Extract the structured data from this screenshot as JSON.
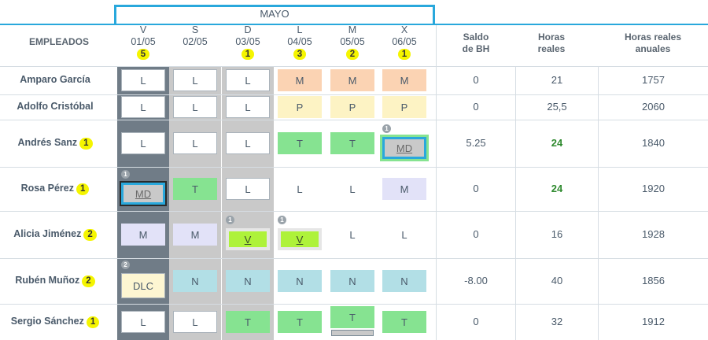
{
  "month": "MAYO",
  "headers": {
    "employees": "EMPLEADOS",
    "balance": [
      "Saldo",
      "de BH"
    ],
    "real_hours": [
      "Horas",
      "reales"
    ],
    "annual_hours": [
      "Horas reales",
      "anuales"
    ]
  },
  "days": [
    {
      "letter": "V",
      "date": "01/05",
      "count": "5"
    },
    {
      "letter": "S",
      "date": "02/05",
      "count": ""
    },
    {
      "letter": "D",
      "date": "03/05",
      "count": "1"
    },
    {
      "letter": "L",
      "date": "04/05",
      "count": "3"
    },
    {
      "letter": "M",
      "date": "05/05",
      "count": "2"
    },
    {
      "letter": "X",
      "date": "06/05",
      "count": "1"
    }
  ],
  "employees": [
    {
      "name": "Amparo García",
      "count": "",
      "shifts": [
        {
          "code": "L",
          "style": "L-box"
        },
        {
          "code": "L",
          "style": "L-box"
        },
        {
          "code": "L",
          "style": "L-box"
        },
        {
          "code": "M",
          "style": "M-orange"
        },
        {
          "code": "M",
          "style": "M-orange"
        },
        {
          "code": "M",
          "style": "M-orange"
        }
      ],
      "balance": "0",
      "hours": "21",
      "annual": "1757",
      "hours_green": false
    },
    {
      "name": "Adolfo Cristóbal",
      "count": "",
      "shifts": [
        {
          "code": "L",
          "style": "L-box"
        },
        {
          "code": "L",
          "style": "L-box"
        },
        {
          "code": "L",
          "style": "L-box"
        },
        {
          "code": "P",
          "style": "P-yellow"
        },
        {
          "code": "P",
          "style": "P-yellow"
        },
        {
          "code": "P",
          "style": "P-yellow"
        }
      ],
      "balance": "0",
      "hours": "25,5",
      "annual": "2060",
      "hours_green": false
    },
    {
      "name": "Andrés Sanz",
      "count": "1",
      "shifts": [
        {
          "code": "L",
          "style": "L-box"
        },
        {
          "code": "L",
          "style": "L-box"
        },
        {
          "code": "L",
          "style": "L-box"
        },
        {
          "code": "T",
          "style": "T-green"
        },
        {
          "code": "T",
          "style": "T-green"
        },
        {
          "code": "MD",
          "style": "MD-gray",
          "badge": "1"
        }
      ],
      "balance": "5.25",
      "hours": "24",
      "annual": "1840",
      "hours_green": true
    },
    {
      "name": "Rosa Pérez",
      "count": "1",
      "shifts": [
        {
          "code": "MD",
          "style": "MD-sel",
          "badge": "1"
        },
        {
          "code": "T",
          "style": "T-green"
        },
        {
          "code": "L",
          "style": "L-box"
        },
        {
          "code": "L",
          "style": "plain"
        },
        {
          "code": "L",
          "style": "plain"
        },
        {
          "code": "M",
          "style": "M-lav"
        }
      ],
      "balance": "0",
      "hours": "24",
      "annual": "1920",
      "hours_green": true
    },
    {
      "name": "Alicia Jiménez",
      "count": "2",
      "shifts": [
        {
          "code": "M",
          "style": "M-lav"
        },
        {
          "code": "M",
          "style": "M-lav"
        },
        {
          "code": "V",
          "style": "V-lime",
          "badge": "1"
        },
        {
          "code": "V",
          "style": "V-lime",
          "badge": "1"
        },
        {
          "code": "L",
          "style": "plain"
        },
        {
          "code": "L",
          "style": "plain"
        }
      ],
      "balance": "0",
      "hours": "16",
      "annual": "1928",
      "hours_green": false
    },
    {
      "name": "Rubén Muñoz",
      "count": "2",
      "shifts": [
        {
          "code": "DLC",
          "style": "DLC",
          "badge": "2"
        },
        {
          "code": "N",
          "style": "N-cyan"
        },
        {
          "code": "N",
          "style": "N-cyan"
        },
        {
          "code": "N",
          "style": "N-cyan"
        },
        {
          "code": "N",
          "style": "N-cyan"
        },
        {
          "code": "N",
          "style": "N-cyan"
        }
      ],
      "balance": "-8.00",
      "hours": "40",
      "annual": "1856",
      "hours_green": false
    },
    {
      "name": "Sergio Sánchez",
      "count": "1",
      "shifts": [
        {
          "code": "L",
          "style": "L-box"
        },
        {
          "code": "L",
          "style": "L-box"
        },
        {
          "code": "T",
          "style": "T-green"
        },
        {
          "code": "T",
          "style": "T-green"
        },
        {
          "code": "T",
          "style": "T-green"
        },
        {
          "code": "T",
          "style": "T-green"
        }
      ],
      "balance": "0",
      "hours": "32",
      "annual": "1912",
      "hours_green": false
    }
  ]
}
